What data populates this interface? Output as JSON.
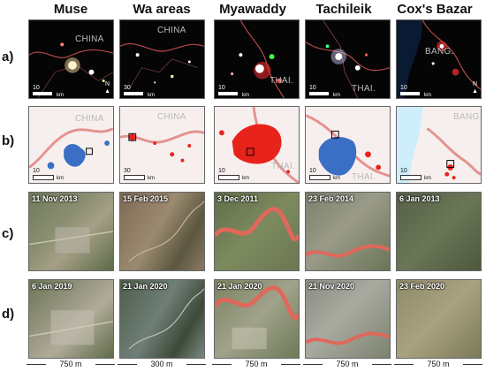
{
  "columns": [
    "Muse",
    "Wa areas",
    "Myawaddy",
    "Tachileik",
    "Cox's Bazar"
  ],
  "row_labels": [
    "a)",
    "b)",
    "c)",
    "d)"
  ],
  "row_a": {
    "countries": [
      "CHINA",
      "CHINA",
      "THAI.",
      "THAI.",
      "BANG."
    ],
    "scale_values": [
      "10",
      "30",
      "10",
      "10",
      "10"
    ],
    "scale_unit": "km",
    "north_label": "N"
  },
  "row_b": {
    "countries": [
      "CHINA",
      "CHINA",
      "THAI.",
      "THAI.",
      "BANG."
    ],
    "scale_values": [
      "10",
      "30",
      "10",
      "10",
      "10"
    ],
    "scale_unit": "km"
  },
  "row_c_dates": [
    "11 Nov 2013",
    "15 Feb 2015",
    "3 Dec 2011",
    "23 Feb 2014",
    "6 Jan 2013"
  ],
  "row_d_dates": [
    "6 Jan 2019",
    "21 Jan 2020",
    "21 Jan 2020",
    "21 Nov 2020",
    "23 Feb 2020"
  ],
  "bottom_scales": [
    "750 m",
    "300 m",
    "750 m",
    "750 m",
    "750 m"
  ],
  "colors": {
    "border_line": "#e07a78",
    "cluster_blue": "#3a6fc4",
    "cluster_red": "#e8231c",
    "river": "#e0685a",
    "sea": "#cdeefa"
  }
}
